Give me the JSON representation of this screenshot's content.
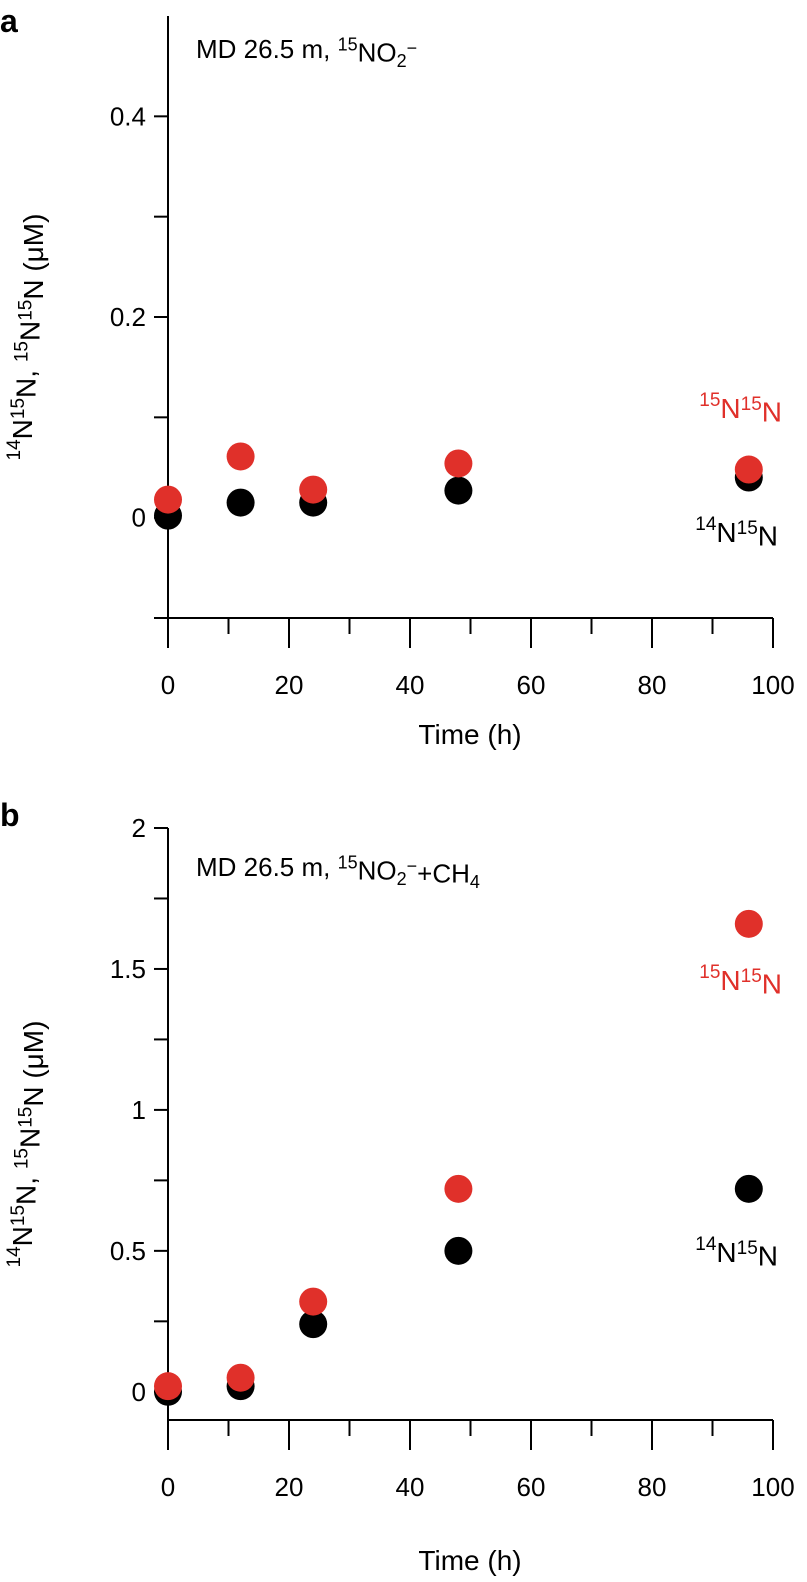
{
  "colors": {
    "n15n15": "#e0302a",
    "n14n15": "#000000",
    "axis": "#000000"
  },
  "chart_data": [
    {
      "type": "scatter",
      "panel": "a",
      "title": {
        "prefix": "MD 26.5 m, ",
        "sup1": "15",
        "main": "NO",
        "sub1": "2",
        "sup2": "−",
        "suffix": ""
      },
      "xlabel": "Time (h)",
      "ylabel": {
        "sup1": "14",
        "part1": "N",
        "sup2": "15",
        "part2": "N, ",
        "sup3": "15",
        "part3": "N",
        "sup4": "15",
        "part4": "N (μM)"
      },
      "xlim": [
        0,
        100
      ],
      "ylim": [
        -0.1,
        0.5
      ],
      "xticks": [
        0,
        20,
        40,
        60,
        80,
        100
      ],
      "xtick_labels": [
        "0",
        "20",
        "40",
        "60",
        "80",
        "100"
      ],
      "xminor": [
        10,
        30,
        50,
        70,
        90
      ],
      "yticks": [
        0,
        0.2,
        0.4
      ],
      "ytick_labels": [
        "0",
        "0.2",
        "0.4"
      ],
      "yminor": [
        -0.1,
        0.1,
        0.3
      ],
      "series": [
        {
          "name": "14N15N",
          "key": "n14n15",
          "x": [
            0,
            12,
            24,
            48,
            96
          ],
          "y": [
            0.002,
            0.015,
            0.015,
            0.027,
            0.04
          ],
          "label": {
            "sup1": "14",
            "t1": "N",
            "sup2": "15",
            "t2": "N"
          }
        },
        {
          "name": "15N15N",
          "key": "n15n15",
          "x": [
            0,
            12,
            24,
            48,
            96
          ],
          "y": [
            0.018,
            0.061,
            0.028,
            0.054,
            0.048
          ],
          "label": {
            "sup1": "15",
            "t1": "N",
            "sup2": "15",
            "t2": "N"
          }
        }
      ]
    },
    {
      "type": "scatter",
      "panel": "b",
      "title": {
        "prefix": "MD 26.5 m, ",
        "sup1": "15",
        "main": "NO",
        "sub1": "2",
        "sup2": "−",
        "suffix": "+CH",
        "sub2": "4"
      },
      "xlabel": "Time (h)",
      "ylabel": {
        "sup1": "14",
        "part1": "N",
        "sup2": "15",
        "part2": "N, ",
        "sup3": "15",
        "part3": "N",
        "sup4": "15",
        "part4": "N (μM)"
      },
      "xlim": [
        0,
        100
      ],
      "ylim": [
        -0.1,
        2
      ],
      "xticks": [
        0,
        20,
        40,
        60,
        80,
        100
      ],
      "xtick_labels": [
        "0",
        "20",
        "40",
        "60",
        "80",
        "100"
      ],
      "xminor": [
        10,
        30,
        50,
        70,
        90
      ],
      "yticks": [
        0,
        0.5,
        1,
        1.5,
        2
      ],
      "ytick_labels": [
        "0",
        "0.5",
        "1",
        "1.5",
        "2"
      ],
      "yminor": [
        0.25,
        0.75,
        1.25,
        1.75
      ],
      "series": [
        {
          "name": "14N15N",
          "key": "n14n15",
          "x": [
            0,
            12,
            24,
            48,
            96
          ],
          "y": [
            0.0,
            0.02,
            0.24,
            0.5,
            0.72
          ],
          "label": {
            "sup1": "14",
            "t1": "N",
            "sup2": "15",
            "t2": "N"
          }
        },
        {
          "name": "15N15N",
          "key": "n15n15",
          "x": [
            0,
            12,
            24,
            48,
            96
          ],
          "y": [
            0.02,
            0.05,
            0.32,
            0.72,
            1.66
          ],
          "label": {
            "sup1": "15",
            "t1": "N",
            "sup2": "15",
            "t2": "N"
          }
        }
      ]
    }
  ]
}
